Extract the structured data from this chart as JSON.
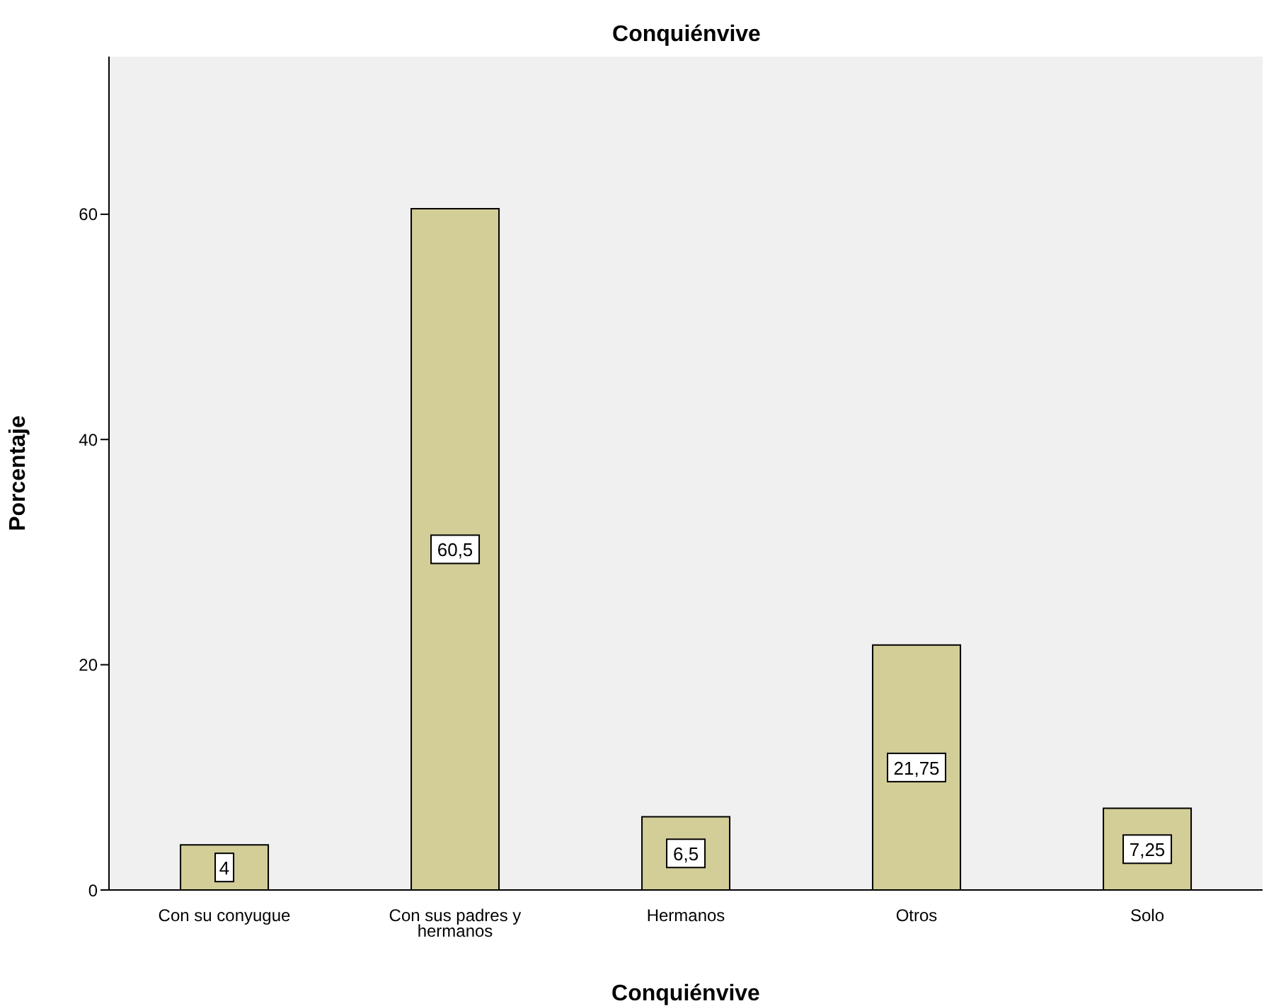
{
  "chart_data": {
    "type": "bar",
    "title": "Conquiénvive",
    "xlabel": "Conquiénvive",
    "ylabel": "Porcentaje",
    "categories": [
      "Con su conyugue",
      "Con sus padres y hermanos",
      "Hermanos",
      "Otros",
      "Solo"
    ],
    "values": [
      4,
      60.5,
      6.5,
      21.75,
      7.25
    ],
    "value_labels": [
      "4",
      "60,5",
      "6,5",
      "21,75",
      "7,25"
    ],
    "color": "#d3ce97",
    "ylim": [
      0,
      74
    ],
    "yticks": [
      0,
      20,
      40,
      60
    ],
    "grid": false,
    "legend": false
  }
}
